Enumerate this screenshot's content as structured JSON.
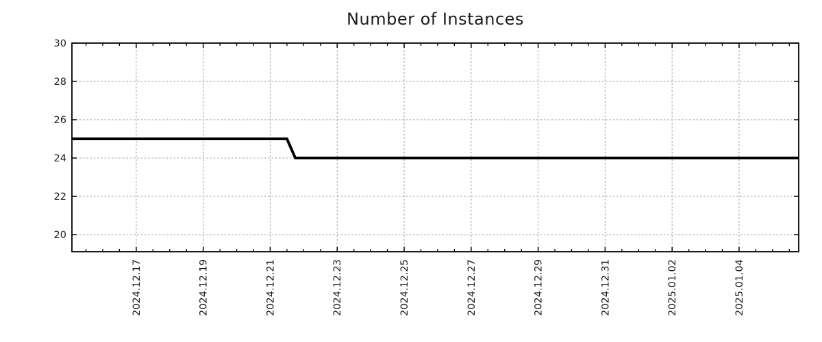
{
  "page": {
    "background": "#ffffff"
  },
  "chart_data": {
    "type": "line",
    "title": "Number of Instances",
    "xlabel": "",
    "ylabel": "",
    "legend": "none",
    "grid": "dashed-major-both-axes",
    "line_shape": "step",
    "colors": {
      "line": "#000000",
      "grid": "#a8a8a8",
      "axis": "#000000",
      "text": "#1c1c1c",
      "background": "#ffffff"
    },
    "ylim": [
      19.11,
      30
    ],
    "yticks": [
      20,
      22,
      24,
      26,
      28,
      30
    ],
    "x_epoch": "2024-12-15 00:00",
    "x_range_days": [
      0.08,
      21.78
    ],
    "minor_xtick_days": 0.5,
    "xticks": [
      {
        "label": "2024.12.17",
        "day": 2
      },
      {
        "label": "2024.12.19",
        "day": 4
      },
      {
        "label": "2024.12.21",
        "day": 6
      },
      {
        "label": "2024.12.23",
        "day": 8
      },
      {
        "label": "2024.12.25",
        "day": 10
      },
      {
        "label": "2024.12.27",
        "day": 12
      },
      {
        "label": "2024.12.29",
        "day": 14
      },
      {
        "label": "2024.12.31",
        "day": 16
      },
      {
        "label": "2025.01.02",
        "day": 18
      },
      {
        "label": "2025.01.04",
        "day": 20
      }
    ],
    "series": [
      {
        "name": "instances",
        "color": "#000000",
        "width": 4,
        "points": [
          {
            "date": "2024-12-15 02:00",
            "day": 0.08,
            "value": 25
          },
          {
            "date": "2024-12-21 12:00",
            "day": 6.5,
            "value": 25
          },
          {
            "date": "2024-12-21 18:00",
            "day": 6.75,
            "value": 24
          },
          {
            "date": "2025-01-05 19:00",
            "day": 21.78,
            "value": 24
          }
        ]
      }
    ]
  }
}
